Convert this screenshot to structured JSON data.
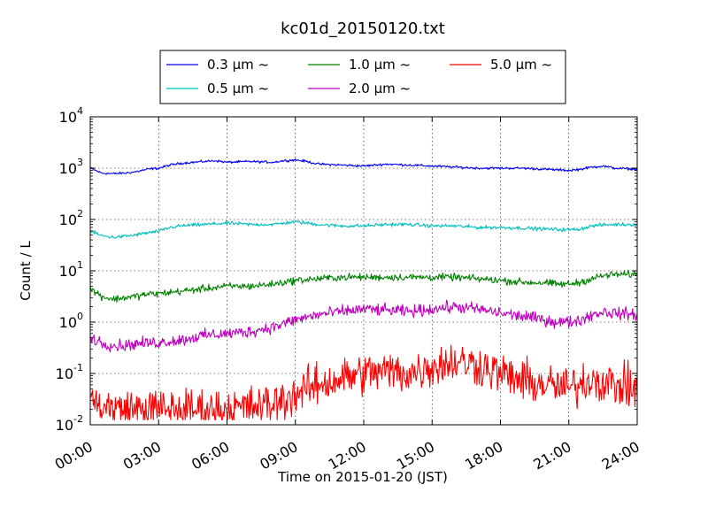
{
  "chart_data": {
    "type": "line",
    "title": "kc01d_20150120.txt",
    "xlabel": "Time on 2015-01-20 (JST)",
    "ylabel": "Count / L",
    "y_scale": "log",
    "ylim": [
      0.01,
      10000
    ],
    "xlim": [
      "00:00",
      "24:00"
    ],
    "grid": true,
    "legend_position": "top-center",
    "x_ticks": [
      "00:00",
      "03:00",
      "06:00",
      "09:00",
      "12:00",
      "15:00",
      "18:00",
      "21:00",
      "24:00"
    ],
    "y_ticks": [
      {
        "value": 0.01,
        "base": "10",
        "exp": "-2"
      },
      {
        "value": 0.1,
        "base": "10",
        "exp": "-1"
      },
      {
        "value": 1,
        "base": "10",
        "exp": "0"
      },
      {
        "value": 10,
        "base": "10",
        "exp": "1"
      },
      {
        "value": 100,
        "base": "10",
        "exp": "2"
      },
      {
        "value": 1000,
        "base": "10",
        "exp": "3"
      },
      {
        "value": 10000,
        "base": "10",
        "exp": "4"
      }
    ],
    "series": [
      {
        "name": "0.3 µm ~",
        "color": "#0000ff",
        "noise": 0.02,
        "floor": null,
        "x": [
          "00:00",
          "00:30",
          "01:00",
          "01:30",
          "02:00",
          "02:30",
          "03:00",
          "03:30",
          "04:00",
          "05:00",
          "05:30",
          "06:00",
          "07:00",
          "08:00",
          "08:30",
          "09:00",
          "09:30",
          "10:00",
          "11:00",
          "12:00",
          "13:00",
          "14:00",
          "15:00",
          "16:00",
          "17:00",
          "18:00",
          "19:00",
          "20:00",
          "21:00",
          "21:30",
          "22:00",
          "22:30",
          "23:00",
          "24:00"
        ],
        "y": [
          1000,
          800,
          780,
          800,
          850,
          950,
          1000,
          1150,
          1250,
          1350,
          1400,
          1300,
          1350,
          1300,
          1400,
          1450,
          1350,
          1200,
          1150,
          1100,
          1200,
          1150,
          1100,
          1050,
          1000,
          1000,
          1000,
          950,
          900,
          950,
          1050,
          1100,
          1000,
          950
        ]
      },
      {
        "name": "0.5 µm ~",
        "color": "#00bfbf",
        "noise": 0.03,
        "floor": null,
        "x": [
          "00:00",
          "00:30",
          "01:00",
          "01:30",
          "02:00",
          "02:30",
          "03:00",
          "03:30",
          "04:00",
          "05:00",
          "06:00",
          "07:00",
          "08:00",
          "08:30",
          "09:00",
          "09:30",
          "10:00",
          "11:00",
          "12:00",
          "13:00",
          "14:00",
          "15:00",
          "16:00",
          "17:00",
          "18:00",
          "19:00",
          "20:00",
          "21:00",
          "21:30",
          "22:00",
          "22:30",
          "23:00",
          "24:00"
        ],
        "y": [
          60,
          48,
          45,
          47,
          50,
          55,
          58,
          70,
          75,
          80,
          85,
          80,
          80,
          85,
          90,
          85,
          80,
          75,
          75,
          80,
          80,
          75,
          75,
          70,
          70,
          68,
          65,
          63,
          65,
          75,
          78,
          80,
          80
        ]
      },
      {
        "name": "1.0 µm ~",
        "color": "#008000",
        "noise": 0.06,
        "floor": null,
        "x": [
          "00:00",
          "00:30",
          "01:00",
          "01:30",
          "02:00",
          "02:30",
          "03:00",
          "04:00",
          "05:00",
          "06:00",
          "07:00",
          "08:00",
          "09:00",
          "10:00",
          "11:00",
          "12:00",
          "13:00",
          "14:00",
          "15:00",
          "16:00",
          "17:00",
          "18:00",
          "19:00",
          "20:00",
          "20:30",
          "21:00",
          "21:30",
          "22:00",
          "22:30",
          "23:00",
          "24:00"
        ],
        "y": [
          4.5,
          3.2,
          2.8,
          3.0,
          3.2,
          3.5,
          3.6,
          4.0,
          4.5,
          5.0,
          5.0,
          5.5,
          6.5,
          7.0,
          7.5,
          7.5,
          7.5,
          7.5,
          7.5,
          7.5,
          7.0,
          6.5,
          6.0,
          5.8,
          5.5,
          5.5,
          6.0,
          7.0,
          8.0,
          8.5,
          8.5
        ]
      },
      {
        "name": "2.0 µm ~",
        "color": "#bf00bf",
        "noise": 0.1,
        "floor": null,
        "x": [
          "00:00",
          "00:30",
          "01:00",
          "01:30",
          "02:00",
          "03:00",
          "04:00",
          "05:00",
          "06:00",
          "07:00",
          "08:00",
          "09:00",
          "10:00",
          "11:00",
          "12:00",
          "13:00",
          "14:00",
          "15:00",
          "16:00",
          "17:00",
          "18:00",
          "19:00",
          "20:00",
          "20:30",
          "21:00",
          "21:30",
          "22:00",
          "22:30",
          "23:00",
          "24:00"
        ],
        "y": [
          0.5,
          0.4,
          0.35,
          0.35,
          0.38,
          0.4,
          0.45,
          0.55,
          0.6,
          0.65,
          0.8,
          1.1,
          1.4,
          1.6,
          1.8,
          1.7,
          1.6,
          1.8,
          2.0,
          1.8,
          1.5,
          1.3,
          1.1,
          1.0,
          1.0,
          1.1,
          1.4,
          1.6,
          1.5,
          1.4
        ]
      },
      {
        "name": "5.0 µm ~",
        "color": "#ff0000",
        "noise": 0.35,
        "floor": 0.0125,
        "x": [
          "00:00",
          "01:00",
          "02:00",
          "03:00",
          "04:00",
          "05:00",
          "06:00",
          "07:00",
          "08:00",
          "09:00",
          "10:00",
          "11:00",
          "12:00",
          "13:00",
          "14:00",
          "15:00",
          "16:00",
          "17:00",
          "18:00",
          "19:00",
          "20:00",
          "21:00",
          "22:00",
          "23:00",
          "24:00"
        ],
        "y": [
          0.03,
          0.02,
          0.02,
          0.02,
          0.02,
          0.02,
          0.02,
          0.022,
          0.025,
          0.04,
          0.06,
          0.08,
          0.1,
          0.11,
          0.1,
          0.14,
          0.17,
          0.15,
          0.1,
          0.07,
          0.06,
          0.05,
          0.08,
          0.06,
          0.05
        ]
      }
    ]
  }
}
